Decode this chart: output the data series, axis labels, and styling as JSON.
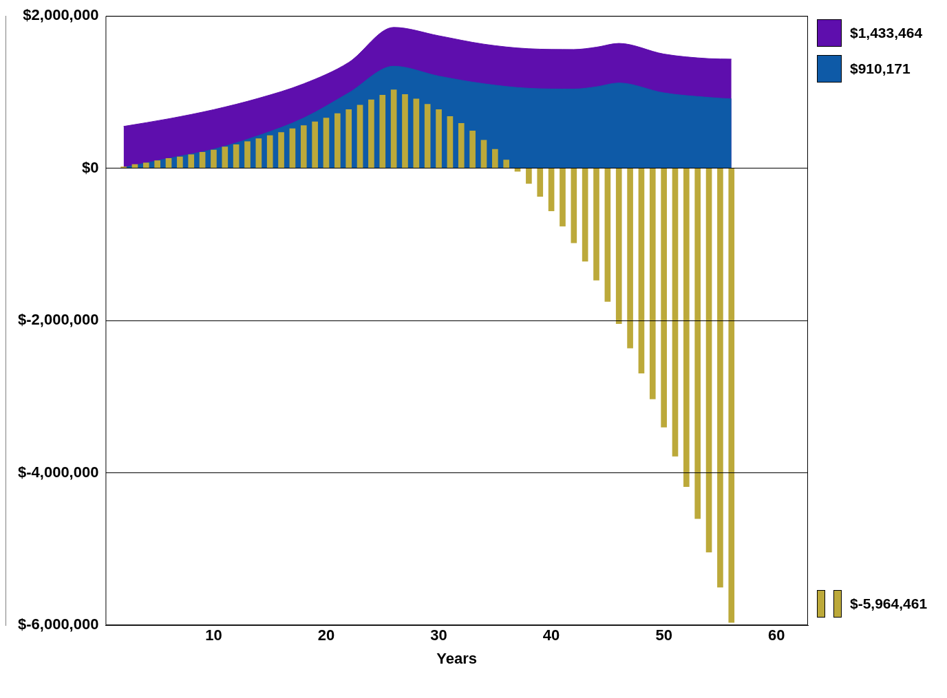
{
  "chart_data": {
    "type": "bar",
    "xlabel": "Years",
    "xlim": [
      0.4,
      62.8
    ],
    "xticks": [
      10,
      20,
      30,
      40,
      50,
      60
    ],
    "ylim": [
      -6000000,
      2000000
    ],
    "yticks": [
      {
        "value": 2000000,
        "label": "$2,000,000"
      },
      {
        "value": 0,
        "label": "$0"
      },
      {
        "value": -2000000,
        "label": "$-2,000,000"
      },
      {
        "value": -4000000,
        "label": "$-4,000,000"
      },
      {
        "value": -6000000,
        "label": "$-6,000,000"
      }
    ],
    "grid": "y",
    "legend": "right",
    "series": [
      {
        "name": "$1,433,464",
        "type": "area",
        "color": "#5e0ead",
        "x": [
          2,
          6,
          10,
          14,
          18,
          22,
          26,
          30,
          34,
          38,
          42,
          44,
          46,
          50,
          54,
          56
        ],
        "values": [
          550000,
          650000,
          770000,
          920000,
          1110000,
          1390000,
          1850000,
          1740000,
          1630000,
          1570000,
          1560000,
          1590000,
          1640000,
          1500000,
          1440000,
          1433464
        ]
      },
      {
        "name": "$910,171",
        "type": "area",
        "color": "#0e5aa7",
        "x": [
          2,
          6,
          10,
          14,
          18,
          22,
          26,
          30,
          34,
          38,
          42,
          44,
          46,
          50,
          54,
          56
        ],
        "values": [
          10000,
          130000,
          250000,
          430000,
          660000,
          990000,
          1340000,
          1210000,
          1110000,
          1050000,
          1040000,
          1070000,
          1120000,
          990000,
          930000,
          910171
        ]
      },
      {
        "name": "$-5,964,461",
        "color": "#bca93a",
        "x": [
          2,
          3,
          4,
          5,
          6,
          7,
          8,
          9,
          10,
          11,
          12,
          13,
          14,
          15,
          16,
          17,
          18,
          19,
          20,
          21,
          22,
          23,
          24,
          25,
          26,
          27,
          28,
          29,
          30,
          31,
          32,
          33,
          34,
          35,
          36,
          37,
          38,
          39,
          40,
          41,
          42,
          43,
          44,
          45,
          46,
          47,
          48,
          49,
          50,
          51,
          52,
          53,
          54,
          55,
          56
        ],
        "values": [
          20000,
          50000,
          70000,
          100000,
          130000,
          150000,
          180000,
          210000,
          240000,
          280000,
          310000,
          350000,
          390000,
          430000,
          470000,
          520000,
          560000,
          610000,
          660000,
          720000,
          770000,
          830000,
          900000,
          960000,
          1030000,
          970000,
          910000,
          840000,
          770000,
          680000,
          590000,
          490000,
          370000,
          250000,
          110000,
          -40000,
          -200000,
          -370000,
          -560000,
          -760000,
          -980000,
          -1220000,
          -1470000,
          -1750000,
          -2040000,
          -2360000,
          -2690000,
          -3030000,
          -3400000,
          -3780000,
          -4180000,
          -4600000,
          -5040000,
          -5500000,
          -5964461
        ]
      }
    ]
  }
}
